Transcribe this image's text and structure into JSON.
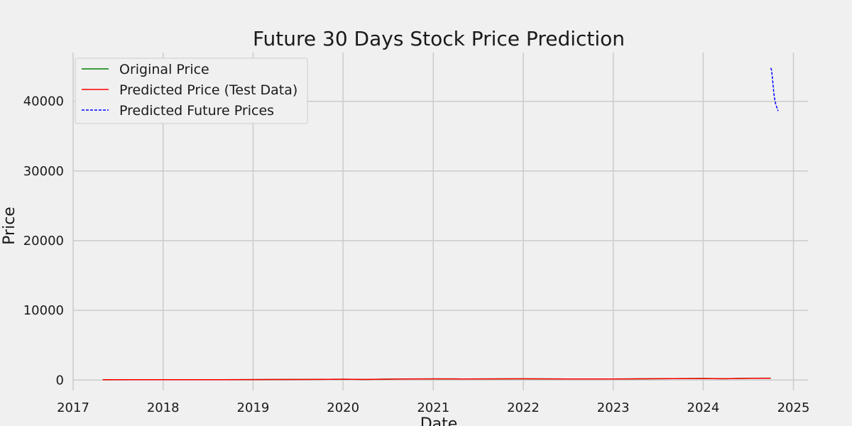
{
  "chart_data": {
    "type": "line",
    "title": "Future 30 Days Stock Price Prediction",
    "xlabel": "Date",
    "ylabel": "Price",
    "xlim": [
      "2017-01-01",
      "2025-03-01"
    ],
    "ylim": [
      -1500,
      47000
    ],
    "x_ticks": [
      "2017-01-01",
      "2018-01-01",
      "2019-01-01",
      "2020-01-01",
      "2021-01-01",
      "2022-01-01",
      "2023-01-01",
      "2024-01-01",
      "2025-01-01"
    ],
    "x_tick_labels": [
      "2017",
      "2018",
      "2019",
      "2020",
      "2021",
      "2022",
      "2023",
      "2024",
      "2025"
    ],
    "y_ticks": [
      0,
      10000,
      20000,
      30000,
      40000
    ],
    "y_tick_labels": [
      "0",
      "10000",
      "20000",
      "30000",
      "40000"
    ],
    "grid": true,
    "legend_position": "top-left",
    "series": [
      {
        "name": "Original Price",
        "color": "#008000",
        "style": "solid",
        "x": [
          "2017-05-01",
          "2017-09-01",
          "2018-01-01",
          "2018-05-01",
          "2018-09-01",
          "2019-01-01",
          "2019-05-01",
          "2019-09-01",
          "2020-01-01",
          "2020-04-01",
          "2020-08-01",
          "2021-01-01",
          "2021-05-01",
          "2021-09-01",
          "2022-01-01",
          "2022-04-01",
          "2022-07-01",
          "2022-10-01",
          "2023-01-01",
          "2023-05-01",
          "2023-09-01",
          "2024-01-01",
          "2024-04-01",
          "2024-07-01",
          "2024-10-01"
        ],
        "y": [
          40,
          45,
          50,
          55,
          60,
          70,
          80,
          90,
          120,
          80,
          150,
          170,
          160,
          175,
          180,
          170,
          150,
          165,
          160,
          180,
          200,
          230,
          190,
          250,
          270
        ]
      },
      {
        "name": "Predicted Price (Test Data)",
        "color": "#ff0000",
        "style": "solid",
        "x": [
          "2017-05-01",
          "2017-09-01",
          "2018-01-01",
          "2018-05-01",
          "2018-09-01",
          "2019-01-01",
          "2019-05-01",
          "2019-09-01",
          "2020-01-01",
          "2020-04-01",
          "2020-08-01",
          "2021-01-01",
          "2021-05-01",
          "2021-09-01",
          "2022-01-01",
          "2022-04-01",
          "2022-07-01",
          "2022-10-01",
          "2023-01-01",
          "2023-05-01",
          "2023-09-01",
          "2024-01-01",
          "2024-04-01",
          "2024-07-01",
          "2024-10-01"
        ],
        "y": [
          45,
          48,
          52,
          57,
          62,
          72,
          82,
          92,
          118,
          90,
          145,
          168,
          162,
          172,
          182,
          172,
          155,
          162,
          162,
          178,
          198,
          225,
          195,
          245,
          265
        ]
      },
      {
        "name": "Predicted Future Prices",
        "color": "#0000ff",
        "style": "dashed",
        "x": [
          "2024-10-01",
          "2024-10-04",
          "2024-10-07",
          "2024-10-10",
          "2024-10-13",
          "2024-10-16",
          "2024-10-19",
          "2024-10-22",
          "2024-10-25",
          "2024-10-28",
          "2024-10-31"
        ],
        "y": [
          44800,
          44500,
          43600,
          42500,
          41400,
          40500,
          39900,
          39500,
          39200,
          38900,
          38600
        ]
      }
    ]
  }
}
